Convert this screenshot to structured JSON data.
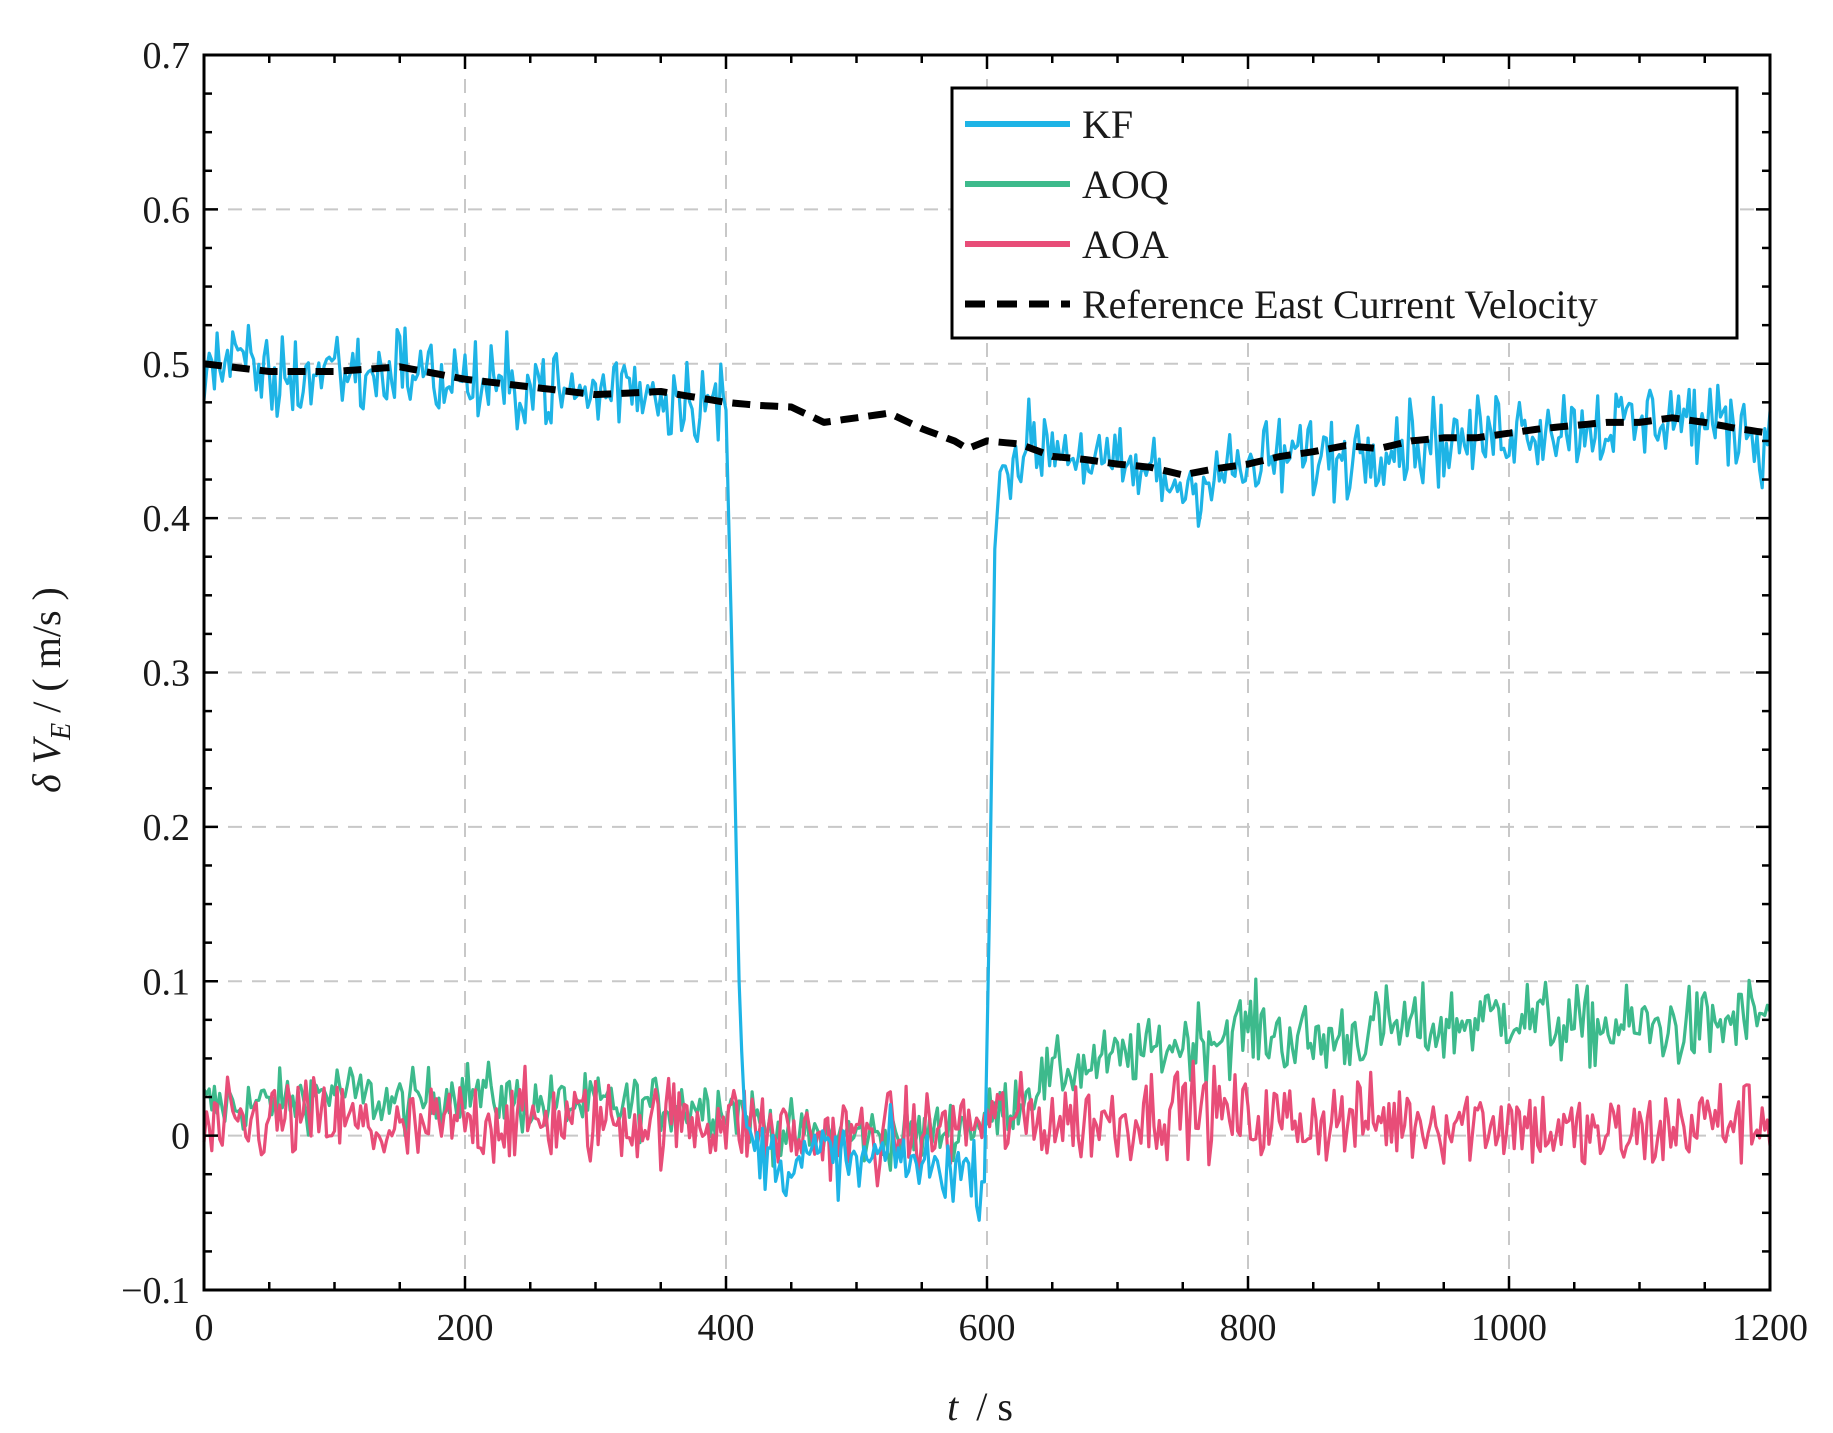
{
  "chart_data": {
    "type": "line",
    "title": "",
    "xlabel": {
      "var": "t",
      "unit": "/ s"
    },
    "ylabel": {
      "delta": "δ",
      "var": "V",
      "sub": "E",
      "unit": "/ ( m/s )"
    },
    "xlim": [
      0,
      1200
    ],
    "ylim": [
      -0.1,
      0.7
    ],
    "x_ticks": [
      0,
      200,
      400,
      600,
      800,
      1000,
      1200
    ],
    "x_tick_labels": [
      "0",
      "200",
      "400",
      "600",
      "800",
      "1000",
      "1200"
    ],
    "y_ticks": [
      -0.1,
      0,
      0.1,
      0.2,
      0.3,
      0.4,
      0.5,
      0.6,
      0.7
    ],
    "y_tick_labels": [
      "−0.1",
      "0",
      "0.1",
      "0.2",
      "0.3",
      "0.4",
      "0.5",
      "0.6",
      "0.7"
    ],
    "grid": true,
    "legend_position": "top-right",
    "series": [
      {
        "name": "KF",
        "color": "#1eb4e6",
        "style": "solid",
        "x": [
          0,
          25,
          50,
          75,
          100,
          125,
          150,
          175,
          200,
          225,
          250,
          275,
          300,
          325,
          350,
          375,
          400,
          405,
          410,
          415,
          425,
          450,
          475,
          500,
          525,
          550,
          575,
          598,
          602,
          606,
          610,
          620,
          650,
          675,
          700,
          725,
          750,
          775,
          800,
          825,
          850,
          875,
          900,
          925,
          950,
          975,
          1000,
          1025,
          1050,
          1075,
          1100,
          1125,
          1150,
          1175,
          1200
        ],
        "y": [
          0.5,
          0.5,
          0.49,
          0.49,
          0.5,
          0.49,
          0.5,
          0.49,
          0.49,
          0.48,
          0.49,
          0.48,
          0.48,
          0.49,
          0.48,
          0.48,
          0.47,
          0.3,
          0.1,
          0.0,
          -0.01,
          -0.02,
          -0.01,
          -0.02,
          -0.01,
          -0.02,
          -0.02,
          -0.03,
          0.15,
          0.38,
          0.43,
          0.44,
          0.45,
          0.44,
          0.43,
          0.43,
          0.42,
          0.43,
          0.43,
          0.44,
          0.44,
          0.44,
          0.45,
          0.45,
          0.45,
          0.45,
          0.46,
          0.46,
          0.46,
          0.46,
          0.46,
          0.47,
          0.46,
          0.46,
          0.45
        ]
      },
      {
        "name": "AOQ",
        "color": "#3dba8c",
        "style": "solid",
        "x": [
          0,
          50,
          100,
          150,
          200,
          250,
          300,
          350,
          400,
          450,
          500,
          550,
          600,
          650,
          700,
          750,
          800,
          850,
          900,
          950,
          1000,
          1050,
          1100,
          1150,
          1200
        ],
        "y": [
          0.02,
          0.02,
          0.03,
          0.02,
          0.03,
          0.02,
          0.02,
          0.02,
          0.02,
          0.0,
          0.0,
          0.0,
          0.01,
          0.04,
          0.05,
          0.06,
          0.07,
          0.06,
          0.07,
          0.07,
          0.08,
          0.07,
          0.07,
          0.07,
          0.08
        ]
      },
      {
        "name": "AOA",
        "color": "#e84d78",
        "style": "solid",
        "x": [
          0,
          50,
          100,
          150,
          200,
          250,
          300,
          350,
          400,
          450,
          500,
          550,
          600,
          650,
          700,
          750,
          800,
          850,
          900,
          950,
          1000,
          1050,
          1100,
          1150,
          1200
        ],
        "y": [
          0.0,
          0.01,
          0.01,
          0.0,
          0.01,
          0.01,
          0.01,
          0.01,
          0.01,
          0.0,
          0.0,
          0.0,
          0.01,
          0.01,
          0.01,
          0.02,
          0.01,
          0.01,
          0.01,
          0.01,
          0.01,
          0.0,
          0.0,
          0.01,
          0.01
        ]
      },
      {
        "name": "Reference East Current Velocity",
        "color": "#000000",
        "style": "dashed",
        "x": [
          0,
          50,
          100,
          150,
          200,
          250,
          300,
          350,
          400,
          425,
          450,
          475,
          500,
          525,
          550,
          575,
          585,
          600,
          625,
          650,
          675,
          700,
          725,
          750,
          775,
          800,
          825,
          850,
          875,
          900,
          925,
          950,
          975,
          1000,
          1025,
          1050,
          1075,
          1100,
          1125,
          1150,
          1175,
          1200
        ],
        "y": [
          0.5,
          0.495,
          0.495,
          0.498,
          0.49,
          0.485,
          0.48,
          0.482,
          0.475,
          0.473,
          0.472,
          0.462,
          0.465,
          0.468,
          0.458,
          0.45,
          0.445,
          0.45,
          0.448,
          0.44,
          0.438,
          0.435,
          0.433,
          0.428,
          0.432,
          0.435,
          0.44,
          0.443,
          0.447,
          0.445,
          0.45,
          0.452,
          0.452,
          0.455,
          0.458,
          0.46,
          0.462,
          0.462,
          0.465,
          0.462,
          0.458,
          0.455
        ]
      }
    ],
    "noise": {
      "KF_before_400": 0.035,
      "KF_400_600": 0.015,
      "KF_after_600": 0.028,
      "AOQ": 0.014,
      "AOA": 0.02
    }
  }
}
